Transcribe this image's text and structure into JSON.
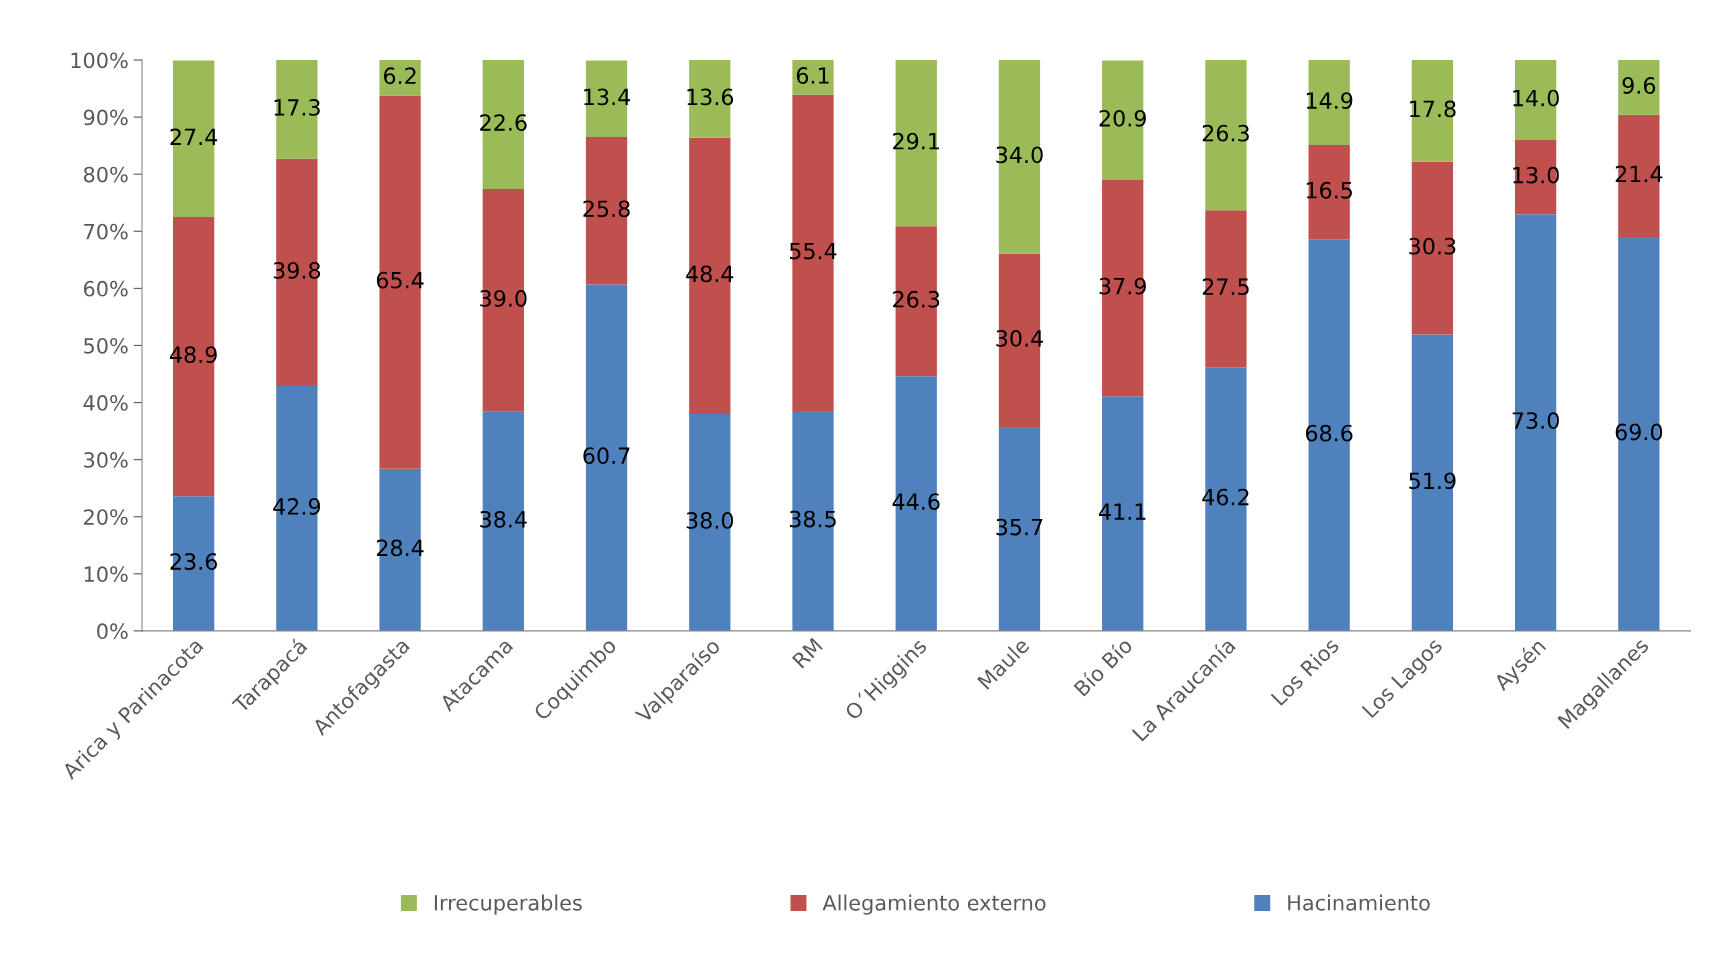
{
  "chart_data": {
    "type": "bar",
    "stacked": true,
    "categories": [
      "Arica y Parinacota",
      "Tarapacá",
      "Antofagasta",
      "Atacama",
      "Coquimbo",
      "Valparaíso",
      "RM",
      "O´Higgins",
      "Maule",
      "Bío Bío",
      "La Araucanía",
      "Los Rios",
      "Los Lagos",
      "Aysén",
      "Magallanes"
    ],
    "series": [
      {
        "name": "Hacinamiento",
        "color": "#4f81bd",
        "values": [
          23.6,
          42.9,
          28.4,
          38.4,
          60.7,
          38.0,
          38.5,
          44.6,
          35.7,
          41.1,
          46.2,
          68.6,
          51.9,
          73.0,
          69.0
        ],
        "value_labels": [
          "23.6",
          "42.9",
          "28.4",
          "38.4",
          "60.7",
          "38.0",
          "38.5",
          "44.6",
          "35.7",
          "41.1",
          "46.2",
          "68.6",
          "51.9",
          "73.0",
          "69.0"
        ]
      },
      {
        "name": "Allegamiento externo",
        "color": "#c0504d",
        "values": [
          48.9,
          39.8,
          65.4,
          39.0,
          25.8,
          48.4,
          55.4,
          26.3,
          30.4,
          37.9,
          27.5,
          16.5,
          30.3,
          13.0,
          21.4
        ],
        "value_labels": [
          "48.9",
          "39.8",
          "65.4",
          "39.0",
          "25.8",
          "48.4",
          "55.4",
          "26.3",
          "30.4",
          "37.9",
          "27.5",
          "16.5",
          "30.3",
          "13.0",
          "21.4"
        ]
      },
      {
        "name": "Irrecuperables",
        "color": "#9bbb59",
        "values": [
          27.4,
          17.3,
          6.2,
          22.6,
          13.4,
          13.6,
          6.1,
          29.1,
          34.0,
          20.9,
          26.3,
          14.9,
          17.8,
          14.0,
          9.6
        ],
        "value_labels": [
          "27.4",
          "17.3",
          "6.2",
          "22.6",
          "13.4",
          "13.6",
          "6.1",
          "29.1",
          "34.0",
          "20.9",
          "26.3",
          "14.9",
          "17.8",
          "14.0",
          "9.6"
        ]
      }
    ],
    "ylim": [
      0,
      100
    ],
    "yticks": [
      {
        "value": 0,
        "label": "0%"
      },
      {
        "value": 10,
        "label": "10%"
      },
      {
        "value": 20,
        "label": "20%"
      },
      {
        "value": 30,
        "label": "30%"
      },
      {
        "value": 40,
        "label": "40%"
      },
      {
        "value": 50,
        "label": "50%"
      },
      {
        "value": 60,
        "label": "60%"
      },
      {
        "value": 70,
        "label": "70%"
      },
      {
        "value": 80,
        "label": "80%"
      },
      {
        "value": 90,
        "label": "90%"
      },
      {
        "value": 100,
        "label": "100%"
      }
    ],
    "grid": false,
    "legend": "bottom"
  }
}
